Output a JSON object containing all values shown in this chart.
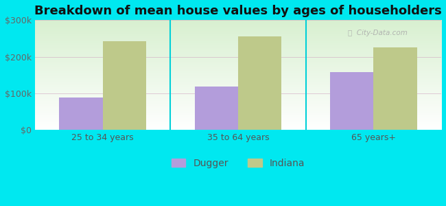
{
  "title": "Breakdown of mean house values by ages of householders",
  "categories": [
    "25 to 34 years",
    "35 to 64 years",
    "65 years+"
  ],
  "dugger_values": [
    88000,
    118000,
    158000
  ],
  "indiana_values": [
    242000,
    255000,
    225000
  ],
  "bar_color_dugger": "#b39ddb",
  "bar_color_indiana": "#bec98a",
  "background_outer": "#00e8f0",
  "ylim": [
    0,
    300000
  ],
  "yticks": [
    0,
    100000,
    200000,
    300000
  ],
  "ytick_labels": [
    "$0",
    "$100k",
    "$200k",
    "$300k"
  ],
  "legend_labels": [
    "Dugger",
    "Indiana"
  ],
  "bar_width": 0.32,
  "title_fontsize": 13,
  "tick_fontsize": 9,
  "legend_fontsize": 10,
  "grid_color": "#cc99bb",
  "divider_color": "#00d0d8"
}
